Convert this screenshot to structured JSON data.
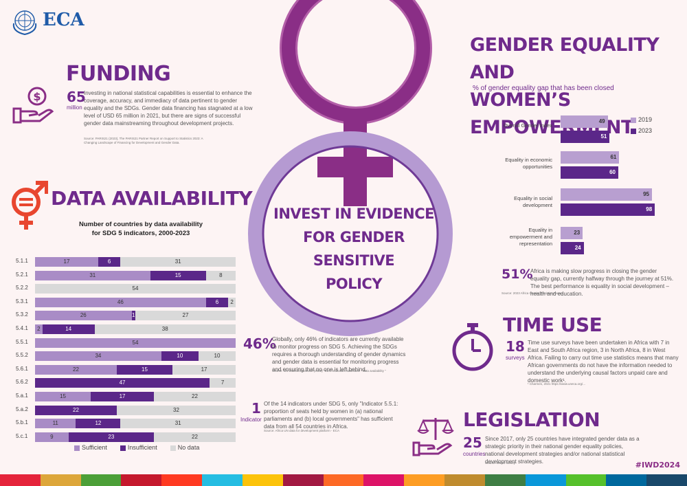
{
  "brand": {
    "name": "ECA"
  },
  "center": {
    "line1": "INVEST  IN EVIDENCE",
    "line2": "FOR GENDER SENSITIVE",
    "line3": "POLICY"
  },
  "funding": {
    "title": "FUNDING",
    "number": "65",
    "unit": "million",
    "text": "Investing in national statistical capabilities is essential to enhance the coverage, accuracy, and immediacy of data pertinent to gender equality and the SDGs. Gender data financing has stagnated at a low level of USD 65 million in 2021, but there are signs of successful gender data mainstreaming throughout development projects.",
    "source": "Source: PARIS21 (2023), The PARIS21 Partner Report on Support to Statistics 2023: A Changing Landscape of Financing for Development and Gender Data."
  },
  "data_availability": {
    "title": "DATA AVAILABILITY",
    "subtitle_line1": "Number of countries by data availability",
    "subtitle_line2": "for SDG 5 indicators, 2000-2023",
    "legend": {
      "sufficient": "Sufficient",
      "insufficient": "Insufficient",
      "nodata": "No data"
    }
  },
  "chart_data": [
    {
      "type": "bar",
      "title": "Number of countries by data availability for SDG 5 indicators, 2000-2023",
      "categories": [
        "5.1.1",
        "5.2.1",
        "5.2.2",
        "5.3.1",
        "5.3.2",
        "5.4.1",
        "5.5.1",
        "5.5.2",
        "5.6.1",
        "5.6.2",
        "5.a.1",
        "5.a.2",
        "5.b.1",
        "5.c.1"
      ],
      "series": [
        {
          "name": "Sufficient",
          "values": [
            17,
            31,
            0,
            46,
            26,
            2,
            54,
            34,
            22,
            0,
            15,
            0,
            11,
            9
          ]
        },
        {
          "name": "Insufficient",
          "values": [
            6,
            15,
            0,
            6,
            1,
            14,
            0,
            10,
            15,
            47,
            17,
            22,
            12,
            23
          ]
        },
        {
          "name": "No data",
          "values": [
            31,
            8,
            54,
            2,
            27,
            38,
            0,
            10,
            17,
            7,
            22,
            32,
            31,
            22
          ]
        }
      ],
      "stacked": true,
      "total": 54
    },
    {
      "type": "bar",
      "title": "% of gender equality gap that has been closed",
      "categories": [
        "Overall Gender Index",
        "Equality in economic opportunities",
        "Equality in social development",
        "Equality in empowerment and representation"
      ],
      "series": [
        {
          "name": "2019",
          "values": [
            49,
            61,
            95,
            23
          ]
        },
        {
          "name": "2023",
          "values": [
            51,
            60,
            98,
            24
          ]
        }
      ]
    }
  ],
  "sdg_note": {
    "number": "46%",
    "text": "Globally, only 46% of indicators are currently available to monitor progress on SDG 5. Achieving the SDGs requires a thorough understanding of gender dynamics and gender data is essential for monitoring progress and ensuring that no one is left behind.",
    "source": "Source: UN Statistics Division (2023) \"SDG Indicators data base - data availability \""
  },
  "indicator_note": {
    "number": "1",
    "unit": "Indicator",
    "text": "Of the 14 indicators under SDG 5, only \"Indicator 5.5.1: proportion of seats held by women in (a) national parliaments and (b) local governments\" has sufficient data from all 54 countries in Africa.",
    "source": "Source: Africa UN data for development platform - ECA"
  },
  "gender": {
    "title_line1": "GENDER EQUALITY AND",
    "title_line2": "WOMEN’S EMPOWERMENT",
    "subtitle": "% of gender equality gap that has been closed",
    "legend_2019": "2019",
    "legend_2023": "2023",
    "labels": [
      "Overall Gender Index",
      "Equality in economic opportunities",
      "Equality in social development",
      "Equality in empowerment and representation"
    ],
    "v2019": [
      "49",
      "61",
      "95",
      "23"
    ],
    "v2023": [
      "51",
      "60",
      "98",
      "24"
    ],
    "stat": "51%",
    "stat_text": "Africa is making slow progress in closing the gender equality gap, currently halfway through the journey at 51%. The best performance is equality in social development – health and education.",
    "source": "Source: 2023 Africa Gender Statistics Forum"
  },
  "time_use": {
    "title": "TIME USE",
    "number": "18",
    "unit": "surveys",
    "text": "Time use surveys have been undertaken in Africa with 7 in East and South Africa region, 3 in North Africa, 8 in West Africa. Failing to carry out time use statistics means that many African governments do not have the information needed to understand the underlying causal factors unpaid care and domestic work¹.",
    "source": "¹ Charmes, 2021 https://www.uneca.org/..."
  },
  "legislation": {
    "title": "LEGISLATION",
    "number": "25",
    "unit": "countries",
    "text": "Since 2017, only 25 countries have integrated gender data as a strategic priority in their national gender equality policies, national development strategies and/or national statistical development strategies.",
    "source": "Source: UNSD survey"
  },
  "hashtag": "#IWD2024",
  "colors": {
    "primary": "#6f2a8c",
    "sufficient": "#a98cc6",
    "insufficient": "#5b2789",
    "nodata": "#d9d9d9",
    "accent_red": "#e8462f",
    "bar2019": "#b89fd0",
    "bar2023": "#5b2789"
  }
}
